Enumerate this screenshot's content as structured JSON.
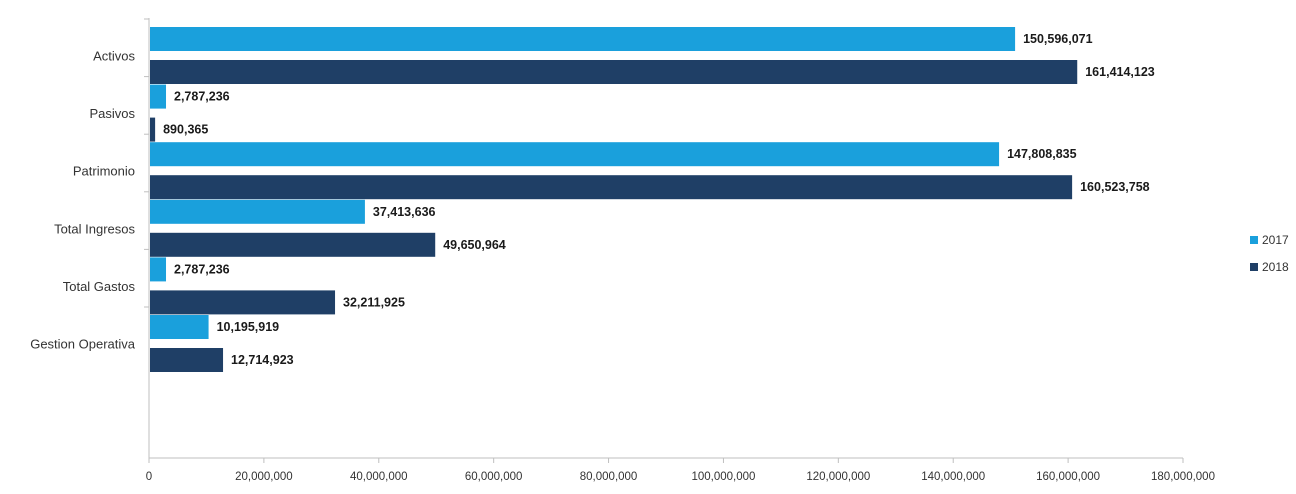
{
  "chart_data": {
    "type": "bar",
    "orientation": "horizontal",
    "title": "",
    "xlabel": "",
    "ylabel": "",
    "categories": [
      "Activos",
      "Pasivos",
      "Patrimonio",
      "Total Ingresos",
      "Total Gastos",
      "Gestion Operativa"
    ],
    "series": [
      {
        "name": "2017",
        "color": "#1aa0dc",
        "values": [
          150596071,
          2787236,
          147808835,
          37413636,
          2787236,
          10195919
        ],
        "labels": [
          "150,596,071",
          "2,787,236",
          "147,808,835",
          "37,413,636",
          "2,787,236",
          "10,195,919"
        ]
      },
      {
        "name": "2018",
        "color": "#1f3f66",
        "values": [
          161414123,
          890365,
          160523758,
          49650964,
          32211925,
          12714923
        ],
        "labels": [
          "161,414,123",
          "890,365",
          "160,523,758",
          "49,650,964",
          "32,211,925",
          "12,714,923"
        ]
      }
    ],
    "xlim": [
      0,
      180000000
    ],
    "x_ticks": [
      0,
      20000000,
      40000000,
      60000000,
      80000000,
      100000000,
      120000000,
      140000000,
      160000000,
      180000000
    ],
    "x_tick_labels": [
      "0",
      "20,000,000",
      "40,000,000",
      "60,000,000",
      "80,000,000",
      "100,000,000",
      "120,000,000",
      "140,000,000",
      "160,000,000",
      "180,000,000"
    ],
    "grid": false,
    "legend_position": "right"
  }
}
